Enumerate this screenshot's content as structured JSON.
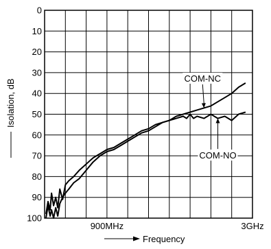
{
  "chart_data": {
    "type": "line",
    "xlabel": "Frequency",
    "ylabel": "Isolation, dB",
    "x_tick_labels": [
      "900MHz",
      "3GHz"
    ],
    "y_ticks": [
      0,
      10,
      20,
      30,
      40,
      50,
      60,
      70,
      80,
      90,
      100
    ],
    "ylim": [
      100,
      0
    ],
    "y_inverted": true,
    "grid": true,
    "x_unit": "GHz",
    "xlim": [
      0,
      3
    ],
    "series": [
      {
        "name": "COM-NC",
        "x": [
          0.02,
          0.05,
          0.08,
          0.1,
          0.13,
          0.16,
          0.19,
          0.22,
          0.26,
          0.3,
          0.35,
          0.42,
          0.5,
          0.6,
          0.7,
          0.8,
          0.9,
          1.0,
          1.1,
          1.2,
          1.3,
          1.4,
          1.5,
          1.6,
          1.7,
          1.8,
          1.9,
          2.0,
          2.1,
          2.2,
          2.3,
          2.4,
          2.5,
          2.6,
          2.7,
          2.8,
          2.9
        ],
        "y": [
          98,
          92,
          96,
          88,
          94,
          90,
          95,
          86,
          91,
          84,
          82,
          80,
          77,
          74,
          71,
          69,
          67,
          66,
          64,
          62,
          60,
          58,
          57,
          55,
          54,
          53,
          51,
          50,
          49,
          48,
          47,
          46,
          44,
          42,
          40,
          37,
          35
        ]
      },
      {
        "name": "COM-NO",
        "x": [
          0.02,
          0.05,
          0.08,
          0.1,
          0.13,
          0.16,
          0.19,
          0.22,
          0.26,
          0.3,
          0.35,
          0.42,
          0.5,
          0.6,
          0.7,
          0.8,
          0.9,
          1.0,
          1.1,
          1.2,
          1.3,
          1.4,
          1.5,
          1.6,
          1.7,
          1.8,
          1.9,
          2.0,
          2.05,
          2.1,
          2.15,
          2.2,
          2.3,
          2.4,
          2.5,
          2.6,
          2.7,
          2.8,
          2.9
        ],
        "y": [
          100,
          94,
          99,
          96,
          100,
          95,
          99,
          93,
          90,
          88,
          86,
          83,
          81,
          77,
          73,
          70,
          68,
          67,
          65,
          63,
          61,
          59,
          58,
          56,
          54,
          53,
          52,
          51,
          52,
          50,
          52,
          51,
          52,
          50,
          52,
          51,
          53,
          50,
          49
        ]
      }
    ],
    "annotations": [
      {
        "text": "COM-NC",
        "series": "COM-NC",
        "points_to_x": 2.3,
        "points_to_y": 47,
        "label_x": 2.28,
        "label_y": 33
      },
      {
        "text": "COM-NO",
        "series": "COM-NO",
        "points_to_x": 2.5,
        "points_to_y": 52,
        "label_x": 2.5,
        "label_y": 70
      }
    ]
  }
}
